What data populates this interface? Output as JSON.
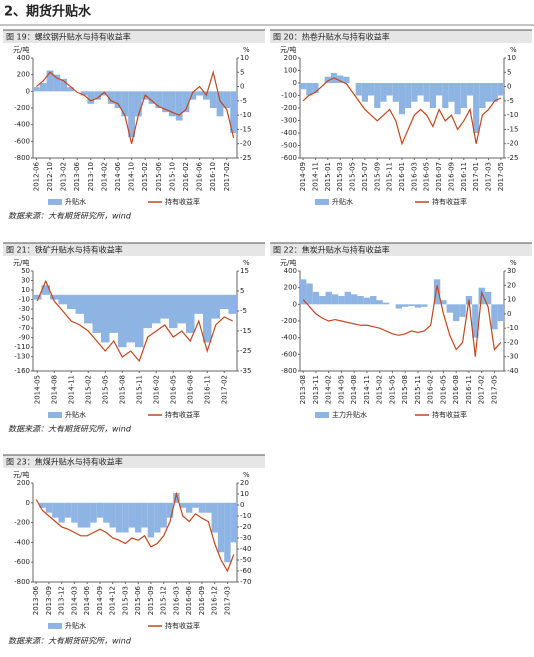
{
  "header": {
    "title": "2、期货升贴水"
  },
  "chart_data": [
    {
      "type": "combo",
      "title": "图 19：螺纹钢升贴水与持有收益率",
      "y_unit": "元/吨",
      "y2_unit": "%",
      "categories": [
        "2012-06",
        null,
        "2012-10",
        null,
        "2013-02",
        null,
        "2013-06",
        null,
        "2013-10",
        null,
        "2014-02",
        null,
        "2014-06",
        null,
        "2014-10",
        null,
        "2015-02",
        null,
        "2015-06",
        null,
        "2015-10",
        null,
        "2016-02",
        null,
        "2016-06",
        null,
        "2016-10",
        null,
        "2017-02",
        null
      ],
      "series": [
        {
          "name": "升贴水",
          "type": "bar",
          "color": "#8db4e2",
          "values": [
            50,
            100,
            250,
            200,
            150,
            50,
            0,
            -50,
            -150,
            -100,
            -50,
            -150,
            -200,
            -300,
            -550,
            -300,
            -100,
            -150,
            -200,
            -250,
            -300,
            -350,
            -250,
            -100,
            -50,
            -100,
            -200,
            -300,
            -200,
            -500
          ]
        },
        {
          "name": "持有收益率",
          "type": "line",
          "axis": "y2",
          "color": "#c4461c",
          "values": [
            0,
            2,
            5,
            3,
            2,
            0,
            -2,
            -3,
            -5,
            -4,
            -2,
            -5,
            -6,
            -10,
            -20,
            -10,
            -3,
            -5,
            -7,
            -8,
            -9,
            -10,
            -8,
            -2,
            0,
            -3,
            5,
            -5,
            -8,
            -18
          ]
        }
      ],
      "ylim": [
        -800,
        400
      ],
      "yticks": [
        -800,
        -600,
        -400,
        -200,
        0,
        200,
        400
      ],
      "y2lim": [
        -25,
        10
      ],
      "y2ticks": [
        -25,
        -20,
        -15,
        -10,
        -5,
        0,
        5,
        10
      ]
    },
    {
      "type": "combo",
      "title": "图 20：热卷升贴水与持有收益率",
      "y_unit": "元/吨",
      "y2_unit": "%",
      "categories": [
        "2014-09",
        null,
        "2014-11",
        null,
        "2015-01",
        null,
        "2015-03",
        null,
        "2015-05",
        null,
        "2015-07",
        null,
        "2015-09",
        null,
        "2015-11",
        null,
        "2016-01",
        null,
        "2016-03",
        null,
        "2016-05",
        null,
        "2016-07",
        null,
        "2016-09",
        null,
        "2016-11",
        null,
        "2017-01",
        null,
        "2017-03",
        null,
        "2017-05"
      ],
      "series": [
        {
          "name": "升贴水",
          "type": "bar",
          "color": "#8db4e2",
          "values": [
            -50,
            -100,
            -80,
            0,
            50,
            80,
            60,
            50,
            0,
            -100,
            -150,
            -100,
            -200,
            -150,
            -100,
            -150,
            -250,
            -200,
            -150,
            -100,
            -150,
            -200,
            -100,
            -200,
            -150,
            -250,
            -200,
            -100,
            -400,
            -200,
            -150,
            -150,
            -100
          ]
        },
        {
          "name": "持有收益率",
          "type": "line",
          "axis": "y2",
          "color": "#c4461c",
          "values": [
            -5,
            -3,
            -2,
            0,
            2,
            3,
            2,
            1,
            -2,
            -5,
            -8,
            -10,
            -12,
            -10,
            -8,
            -12,
            -20,
            -15,
            -10,
            -8,
            -10,
            -14,
            -8,
            -12,
            -10,
            -15,
            -12,
            -8,
            -20,
            -10,
            -8,
            -5,
            -4
          ]
        }
      ],
      "ylim": [
        -600,
        200
      ],
      "yticks": [
        -600,
        -500,
        -400,
        -300,
        -200,
        -100,
        0,
        100,
        200
      ],
      "y2lim": [
        -25,
        10
      ],
      "y2ticks": [
        -25,
        -20,
        -15,
        -10,
        -5,
        0,
        5,
        10
      ]
    },
    {
      "type": "combo",
      "title": "图 21：铁矿升贴水与持有收益率",
      "y_unit": "元/吨",
      "y2_unit": "%",
      "categories": [
        "2014-05",
        null,
        "2014-08",
        null,
        "2014-11",
        null,
        "2015-02",
        null,
        "2015-05",
        null,
        "2015-08",
        null,
        "2015-11",
        null,
        "2016-02",
        null,
        "2016-05",
        null,
        "2016-08",
        null,
        "2016-11",
        null,
        "2017-02",
        null
      ],
      "series": [
        {
          "name": "升贴水",
          "type": "bar",
          "color": "#8db4e2",
          "values": [
            -10,
            20,
            -10,
            -20,
            -30,
            -40,
            -60,
            -80,
            -100,
            -80,
            -110,
            -100,
            -110,
            -70,
            -60,
            -50,
            -70,
            -60,
            -80,
            -40,
            -100,
            -50,
            -30,
            -40
          ]
        },
        {
          "name": "持有收益率",
          "type": "line",
          "axis": "y2",
          "color": "#c4461c",
          "values": [
            0,
            10,
            0,
            -5,
            -10,
            -12,
            -15,
            -20,
            -25,
            -20,
            -28,
            -25,
            -30,
            -18,
            -15,
            -12,
            -18,
            -15,
            -20,
            -10,
            -25,
            -12,
            -8,
            -10
          ]
        }
      ],
      "ylim": [
        -160,
        50
      ],
      "yticks": [
        -160,
        -130,
        -110,
        -90,
        -70,
        -50,
        -30,
        -10,
        10,
        30,
        50
      ],
      "y2lim": [
        -35,
        15
      ],
      "y2ticks": [
        -35,
        -25,
        -15,
        -5,
        5,
        15
      ]
    },
    {
      "type": "combo",
      "title": "图 22：焦炭升贴水与持有收益率",
      "y_unit": "元/吨",
      "y2_unit": "%",
      "categories": [
        "2013-08",
        null,
        "2013-11",
        null,
        "2014-02",
        null,
        "2014-05",
        null,
        "2014-08",
        null,
        "2014-11",
        null,
        "2015-02",
        null,
        "2015-05",
        null,
        "2015-08",
        null,
        "2015-11",
        null,
        "2016-02",
        null,
        "2016-05",
        null,
        "2016-08",
        null,
        "2016-11",
        null,
        "2017-02",
        null,
        "2017-05",
        null
      ],
      "series": [
        {
          "name": "主力升贴水",
          "type": "bar",
          "color": "#8db4e2",
          "values": [
            300,
            250,
            150,
            100,
            150,
            120,
            100,
            150,
            120,
            100,
            80,
            100,
            50,
            20,
            0,
            -50,
            -30,
            -20,
            -40,
            -30,
            0,
            300,
            50,
            -100,
            -200,
            -150,
            100,
            -400,
            200,
            150,
            -300,
            -200
          ]
        },
        {
          "name": "持有收益率",
          "type": "line",
          "axis": "y2",
          "color": "#c4461c",
          "values": [
            10,
            5,
            0,
            -3,
            -5,
            -4,
            -5,
            -6,
            -7,
            -8,
            -8,
            -9,
            -10,
            -12,
            -14,
            -15,
            -14,
            -12,
            -13,
            -12,
            -8,
            20,
            0,
            -15,
            -25,
            -20,
            10,
            -30,
            15,
            5,
            -25,
            -20
          ]
        }
      ],
      "ylim": [
        -800,
        400
      ],
      "yticks": [
        -800,
        -600,
        -400,
        -200,
        0,
        200,
        400
      ],
      "y2lim": [
        -40,
        30
      ],
      "y2ticks": [
        -40,
        -30,
        -20,
        -10,
        0,
        10,
        20,
        30
      ]
    },
    {
      "type": "combo",
      "title": "图 23：焦煤升贴水与持有收益率",
      "y_unit": "元/吨",
      "y2_unit": "%",
      "categories": [
        "2013-06",
        null,
        "2013-09",
        null,
        "2013-12",
        null,
        "2014-03",
        null,
        "2014-06",
        null,
        "2014-09",
        null,
        "2014-12",
        null,
        "2015-03",
        null,
        "2015-06",
        null,
        "2015-09",
        null,
        "2015-12",
        null,
        "2016-03",
        null,
        "2016-06",
        null,
        "2016-09",
        null,
        "2016-12",
        null,
        "2017-03",
        null
      ],
      "series": [
        {
          "name": "升贴水",
          "type": "bar",
          "color": "#8db4e2",
          "values": [
            0,
            -50,
            -100,
            -150,
            -200,
            -150,
            -200,
            -250,
            -250,
            -200,
            -150,
            -200,
            -250,
            -300,
            -300,
            -250,
            -300,
            -250,
            -350,
            -300,
            -250,
            -150,
            100,
            -50,
            -100,
            -50,
            -100,
            -100,
            -300,
            -500,
            -600,
            -400
          ]
        },
        {
          "name": "持有收益率",
          "type": "line",
          "axis": "y2",
          "color": "#c4461c",
          "values": [
            5,
            -5,
            -10,
            -15,
            -20,
            -22,
            -25,
            -28,
            -28,
            -25,
            -22,
            -25,
            -30,
            -32,
            -35,
            -30,
            -32,
            -28,
            -38,
            -35,
            -28,
            -15,
            10,
            -10,
            -15,
            -8,
            -12,
            -15,
            -35,
            -50,
            -60,
            -45
          ]
        }
      ],
      "ylim": [
        -800,
        200
      ],
      "yticks": [
        -800,
        -600,
        -400,
        -200,
        0,
        200
      ],
      "y2lim": [
        -70,
        20
      ],
      "y2ticks": [
        -70,
        -60,
        -50,
        -40,
        -30,
        -20,
        -10,
        0,
        10,
        20
      ]
    }
  ],
  "sources": [
    "数据来源：大有期货研究所，wind",
    "数据来源：大有期货研究所，wind",
    "数据来源：大有期货研究所，wind"
  ]
}
